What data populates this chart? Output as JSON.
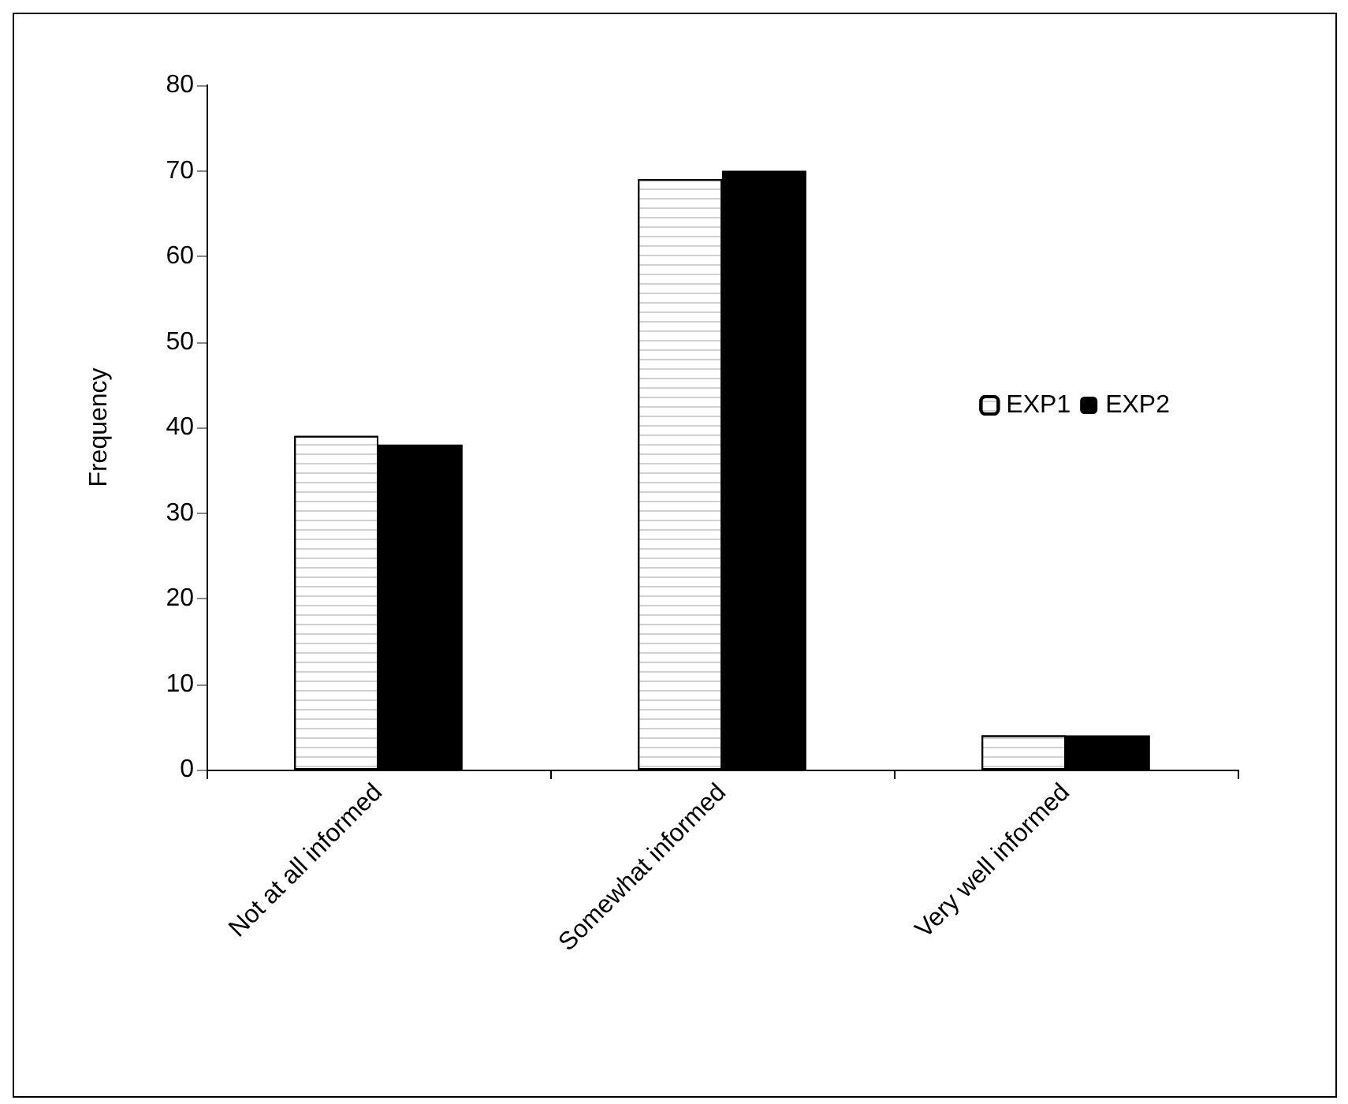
{
  "chart_data": {
    "type": "bar",
    "ylabel": "Frequency",
    "categories": [
      "Not at all informed",
      "Somewhat informed",
      "Very well informed"
    ],
    "series": [
      {
        "name": "EXP1",
        "color": "#ffffff",
        "values": [
          39,
          69,
          4
        ]
      },
      {
        "name": "EXP2",
        "color": "#000000",
        "values": [
          38,
          70,
          4
        ]
      }
    ],
    "ylim": [
      0,
      80
    ],
    "yticks": [
      0,
      10,
      20,
      30,
      40,
      50,
      60,
      70,
      80
    ],
    "grid": false,
    "legend": "right"
  }
}
